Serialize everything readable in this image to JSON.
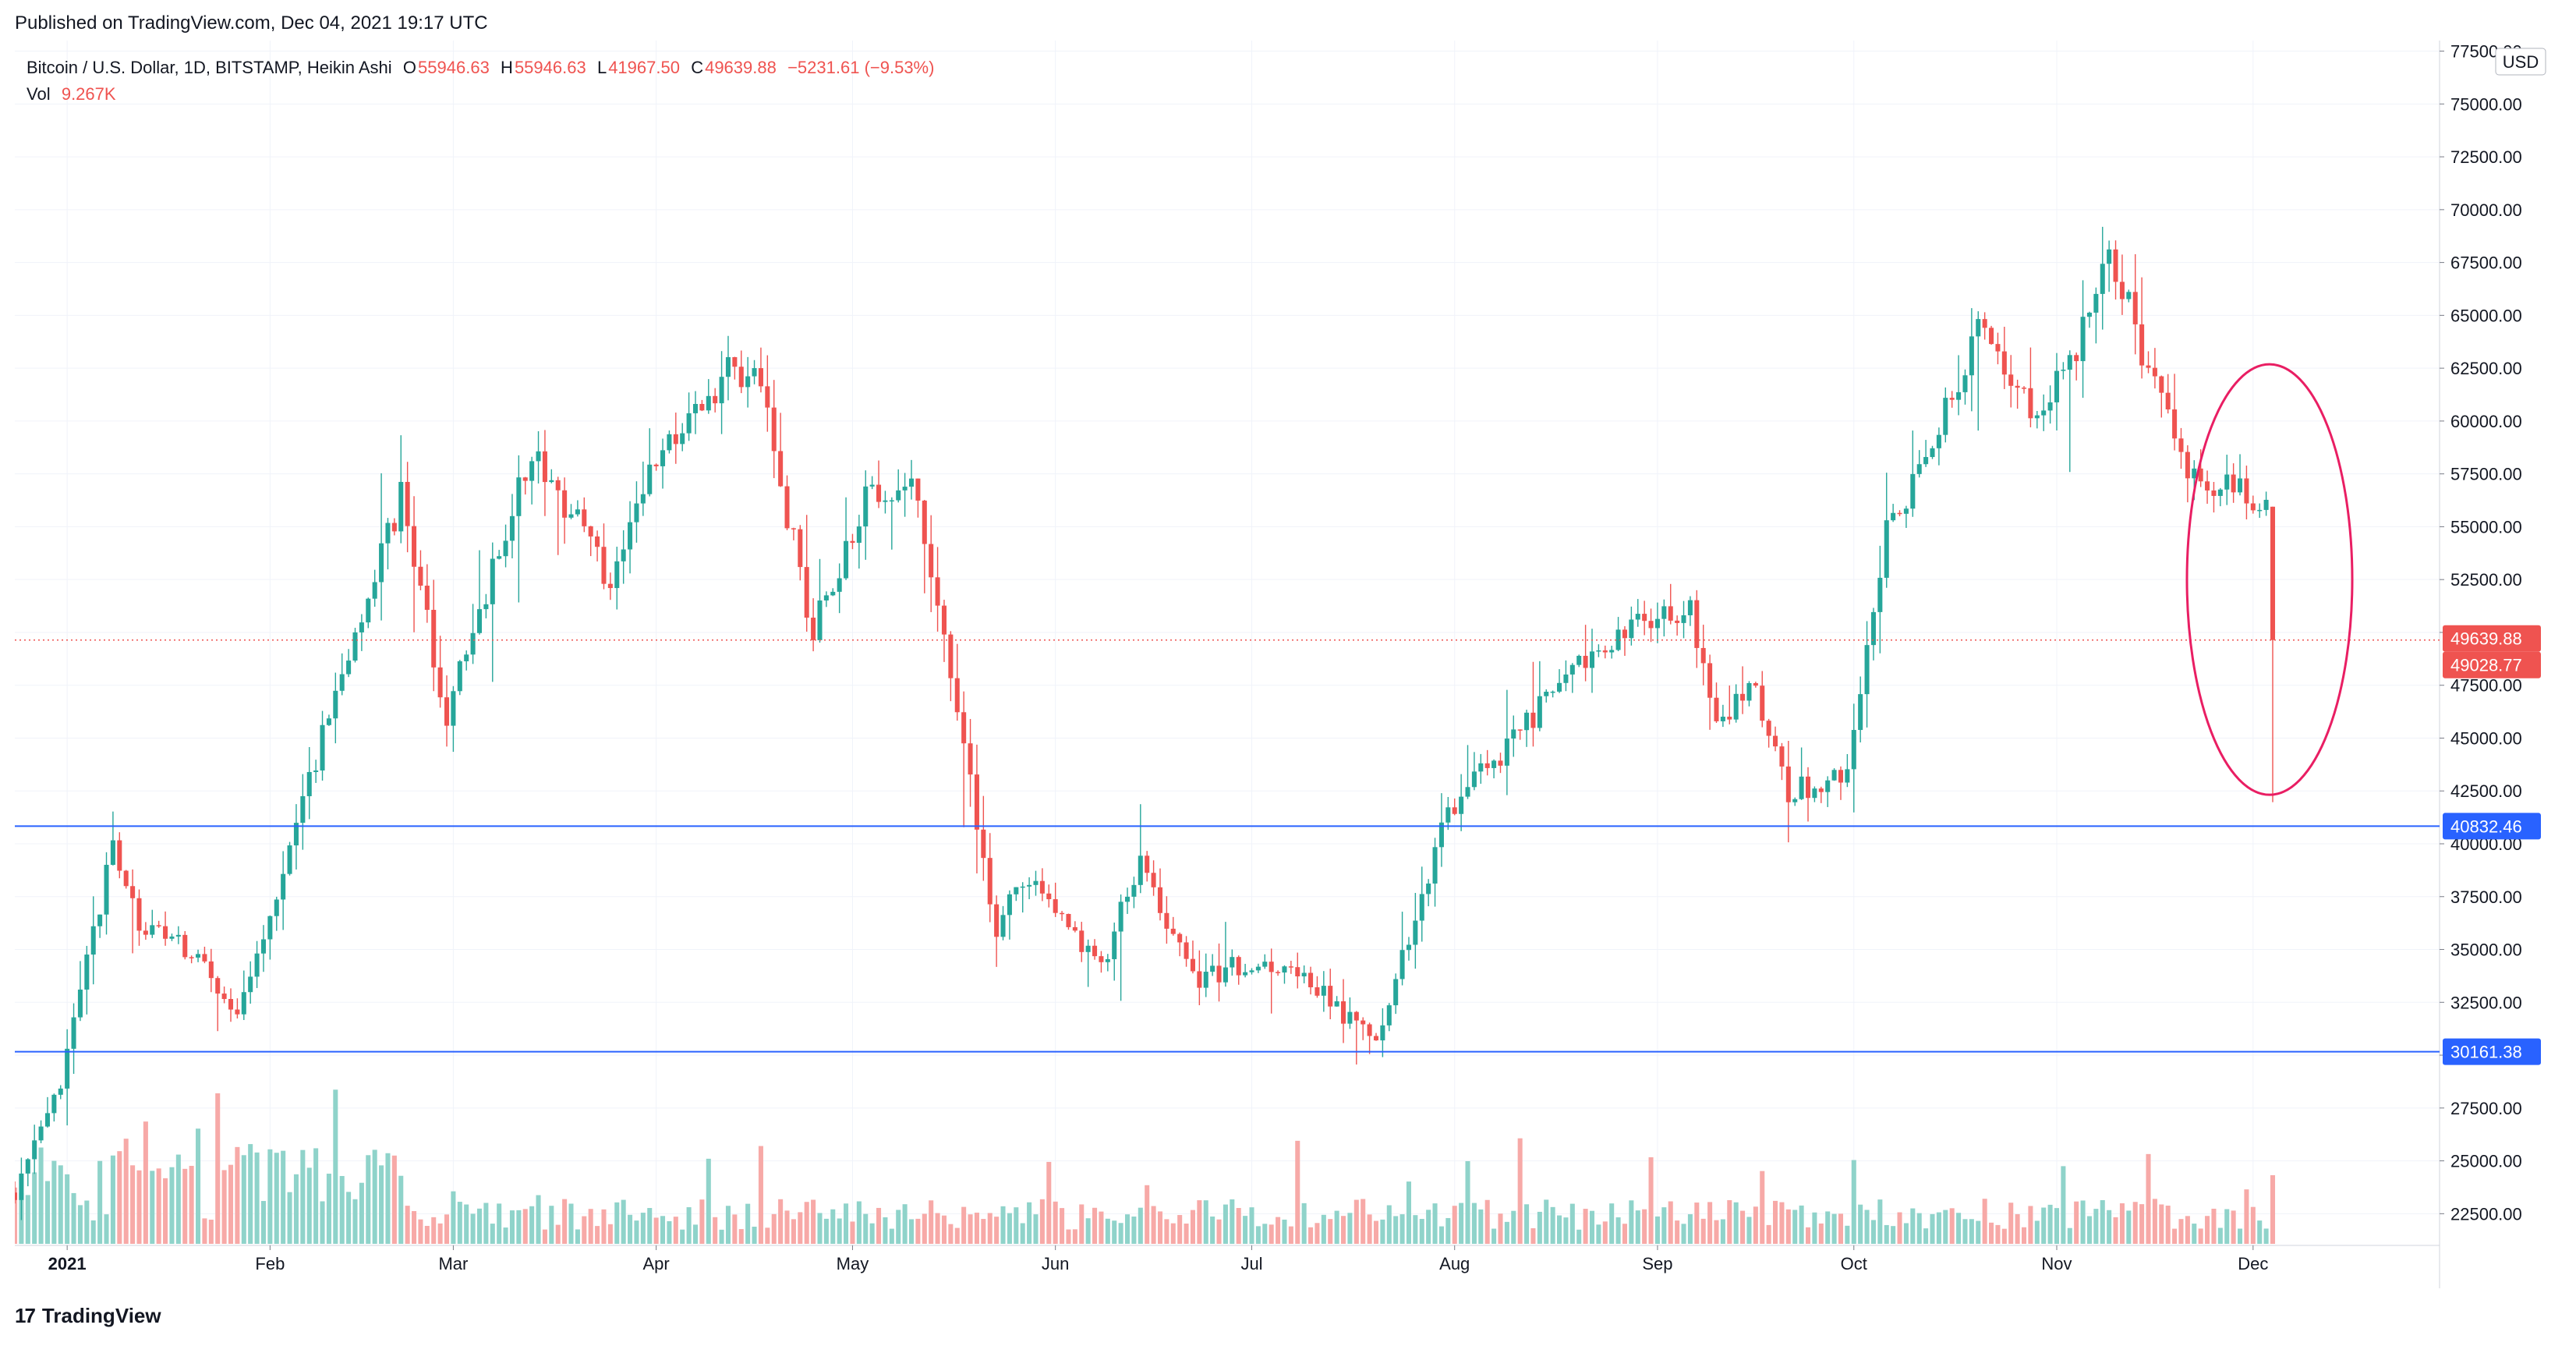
{
  "published": "Published on TradingView.com, Dec 04, 2021 19:17 UTC",
  "legend": {
    "symbol": "Bitcoin / U.S. Dollar, 1D, BITSTAMP, Heikin Ashi",
    "o_label": "O",
    "o_value": "55946.63",
    "h_label": "H",
    "h_value": "55946.63",
    "l_label": "L",
    "l_value": "41967.50",
    "c_label": "C",
    "c_value": "49639.88",
    "change": "−5231.61 (−9.53%)",
    "vol_label": "Vol",
    "vol_value": "9.267K"
  },
  "currency": "USD",
  "footer_brand": "TradingView",
  "colors": {
    "up": "#26a69a",
    "down": "#ef5350",
    "up_vol": "#8fd3ca",
    "down_vol": "#f7a9a7",
    "hline": "#2962ff",
    "circle": "#e91e63",
    "grid": "#f0f3fa"
  },
  "chart_data": {
    "type": "candlestick",
    "title": "Bitcoin / U.S. Dollar, 1D, BITSTAMP, Heikin Ashi",
    "ylim": [
      21000,
      78000
    ],
    "y_ticks": [
      "22500.00",
      "25000.00",
      "27500.00",
      "30000.00",
      "32500.00",
      "35000.00",
      "37500.00",
      "40000.00",
      "42500.00",
      "45000.00",
      "47500.00",
      "50000.00",
      "52500.00",
      "55000.00",
      "57500.00",
      "60000.00",
      "62500.00",
      "65000.00",
      "67500.00",
      "70000.00",
      "72500.00",
      "75000.00",
      "77500.00"
    ],
    "x_range": [
      "2020-12-24",
      "2021-12-04"
    ],
    "x_ticks": [
      {
        "label": "2021",
        "date": "2021-01-01",
        "bold": true
      },
      {
        "label": "Feb",
        "date": "2021-02-01"
      },
      {
        "label": "Mar",
        "date": "2021-03-01"
      },
      {
        "label": "Apr",
        "date": "2021-04-01"
      },
      {
        "label": "May",
        "date": "2021-05-01"
      },
      {
        "label": "Jun",
        "date": "2021-06-01"
      },
      {
        "label": "Jul",
        "date": "2021-07-01"
      },
      {
        "label": "Aug",
        "date": "2021-08-01"
      },
      {
        "label": "Sep",
        "date": "2021-09-01"
      },
      {
        "label": "Oct",
        "date": "2021-10-01"
      },
      {
        "label": "Nov",
        "date": "2021-11-01"
      },
      {
        "label": "Dec",
        "date": "2021-12-01"
      }
    ],
    "close_key_points": [
      {
        "date": "2020-12-24",
        "v": 23500
      },
      {
        "date": "2020-12-31",
        "v": 28500
      },
      {
        "date": "2021-01-08",
        "v": 40000
      },
      {
        "date": "2021-01-12",
        "v": 36000
      },
      {
        "date": "2021-01-20",
        "v": 35000
      },
      {
        "date": "2021-01-27",
        "v": 31500
      },
      {
        "date": "2021-02-09",
        "v": 45000
      },
      {
        "date": "2021-02-21",
        "v": 56500
      },
      {
        "date": "2021-02-28",
        "v": 46000
      },
      {
        "date": "2021-03-13",
        "v": 58500
      },
      {
        "date": "2021-03-25",
        "v": 52500
      },
      {
        "date": "2021-04-02",
        "v": 58800
      },
      {
        "date": "2021-04-13",
        "v": 62500
      },
      {
        "date": "2021-04-17",
        "v": 61500
      },
      {
        "date": "2021-04-25",
        "v": 50000
      },
      {
        "date": "2021-05-03",
        "v": 56500
      },
      {
        "date": "2021-05-10",
        "v": 57500
      },
      {
        "date": "2021-05-20",
        "v": 41000
      },
      {
        "date": "2021-05-23",
        "v": 36000
      },
      {
        "date": "2021-05-27",
        "v": 38500
      },
      {
        "date": "2021-06-08",
        "v": 34000
      },
      {
        "date": "2021-06-14",
        "v": 39500
      },
      {
        "date": "2021-06-22",
        "v": 33500
      },
      {
        "date": "2021-07-01",
        "v": 34500
      },
      {
        "date": "2021-07-08",
        "v": 34000
      },
      {
        "date": "2021-07-20",
        "v": 30500
      },
      {
        "date": "2021-07-31",
        "v": 41500
      },
      {
        "date": "2021-08-14",
        "v": 46500
      },
      {
        "date": "2021-08-22",
        "v": 49000
      },
      {
        "date": "2021-09-06",
        "v": 51500
      },
      {
        "date": "2021-09-10",
        "v": 45500
      },
      {
        "date": "2021-09-16",
        "v": 47500
      },
      {
        "date": "2021-09-21",
        "v": 42500
      },
      {
        "date": "2021-09-30",
        "v": 43000
      },
      {
        "date": "2021-10-06",
        "v": 54500
      },
      {
        "date": "2021-10-16",
        "v": 61000
      },
      {
        "date": "2021-10-20",
        "v": 64800
      },
      {
        "date": "2021-10-28",
        "v": 60500
      },
      {
        "date": "2021-11-02",
        "v": 62000
      },
      {
        "date": "2021-11-09",
        "v": 67500
      },
      {
        "date": "2021-11-16",
        "v": 62000
      },
      {
        "date": "2021-11-21",
        "v": 58000
      },
      {
        "date": "2021-11-28",
        "v": 56500
      },
      {
        "date": "2021-12-02",
        "v": 56500
      },
      {
        "date": "2021-12-03",
        "v": 55900
      },
      {
        "date": "2021-12-04",
        "v": 49639.88
      }
    ],
    "last_bar": {
      "open": 55946.63,
      "high": 55946.63,
      "low": 41967.5,
      "close": 49639.88
    },
    "price_labels": [
      {
        "value": "49639.88",
        "y": 49639.88
      },
      {
        "value": "49028.77",
        "y": 49028.77
      }
    ],
    "horizontal_lines": [
      {
        "value": "40832.46",
        "y": 40832.46
      },
      {
        "value": "30161.38",
        "y": 30161.38
      }
    ],
    "volume": {
      "last": "9.267K"
    },
    "annotation": {
      "type": "ellipse",
      "around": "2021-12-04 drop"
    }
  }
}
